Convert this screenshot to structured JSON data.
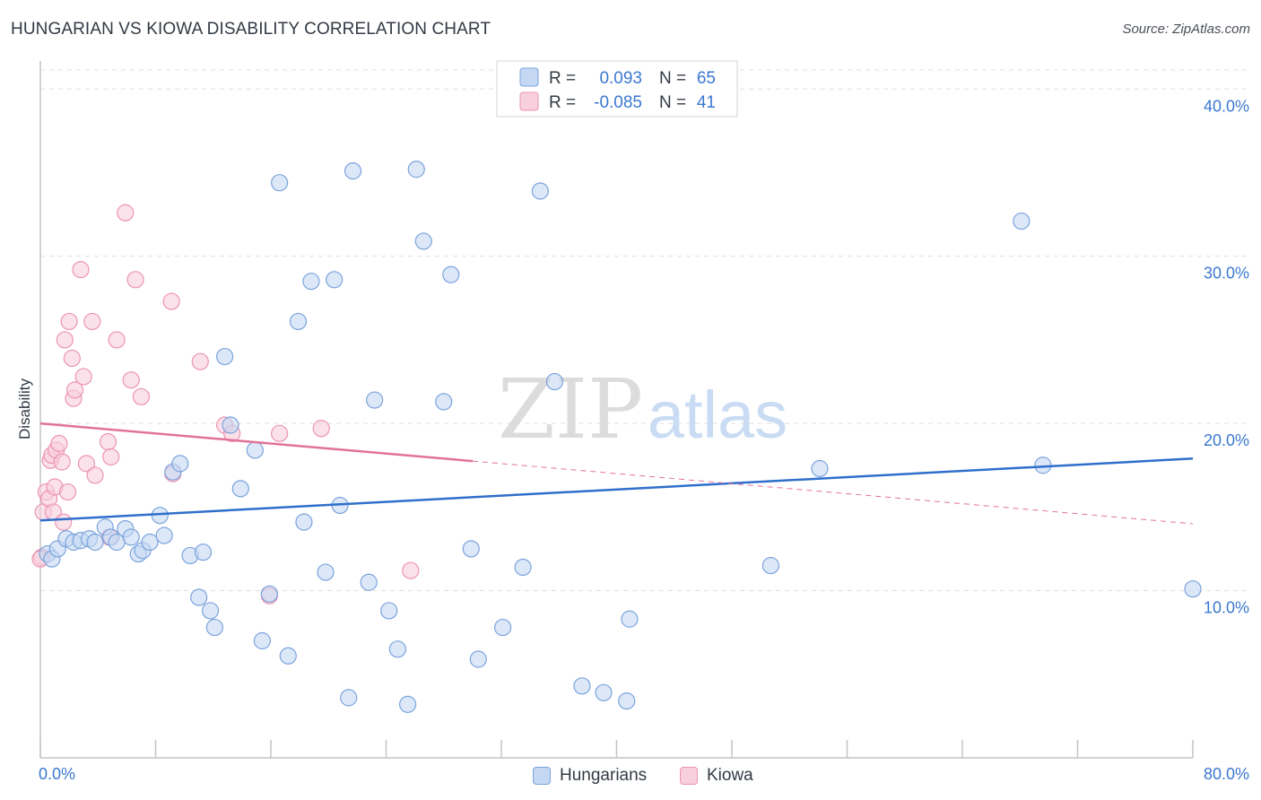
{
  "header": {
    "title": "HUNGARIAN VS KIOWA DISABILITY CORRELATION CHART",
    "source": "Source: ZipAtlas.com"
  },
  "watermark": {
    "zip": "ZIP",
    "atlas": "atlas"
  },
  "colors": {
    "hungarians_fill": "#c5d8f3",
    "hungarians_stroke": "#7ba3dc",
    "hungarians_line": "#2f6fcb",
    "kiowa_fill": "#f8cfdc",
    "kiowa_stroke": "#ec94b1",
    "kiowa_line": "#e2729a",
    "value_text": "#3b78d0",
    "grid": "#dddddd"
  },
  "legend_top": {
    "rows": [
      {
        "r_label": "R =",
        "r_value": "0.093",
        "n_label": "N =",
        "n_value": "65"
      },
      {
        "r_label": "R =",
        "r_value": "-0.085",
        "n_label": "N =",
        "n_value": "41"
      }
    ]
  },
  "legend_bottom": [
    "Hungarians",
    "Kiowa"
  ],
  "chart_data": {
    "type": "scatter",
    "xlabel": "",
    "ylabel": "Disability",
    "xlim": [
      0,
      80
    ],
    "ylim": [
      0,
      42
    ],
    "x_tick_labels": [
      {
        "value": 0,
        "label": "0.0%"
      },
      {
        "value": 80,
        "label": "80.0%"
      }
    ],
    "y_tick_labels": [
      {
        "value": 10,
        "label": "10.0%"
      },
      {
        "value": 20,
        "label": "20.0%"
      },
      {
        "value": 30,
        "label": "30.0%"
      },
      {
        "value": 40,
        "label": "40.0%"
      }
    ],
    "x_minor_ticks": [
      0,
      8,
      16,
      24,
      32,
      40,
      48,
      56,
      64,
      72,
      80
    ],
    "grid": true,
    "series": [
      {
        "name": "Hungarians",
        "r": 0.093,
        "n": 65,
        "trend": {
          "x0": 0,
          "y0": 14.2,
          "x1": 80,
          "y1": 17.9,
          "solid_to": 80
        },
        "points": [
          [
            0.5,
            12.2
          ],
          [
            0.8,
            11.9
          ],
          [
            1.2,
            12.5
          ],
          [
            1.8,
            13.1
          ],
          [
            2.3,
            12.9
          ],
          [
            2.8,
            13.0
          ],
          [
            3.4,
            13.1
          ],
          [
            3.8,
            12.9
          ],
          [
            4.5,
            13.8
          ],
          [
            4.9,
            13.2
          ],
          [
            5.3,
            12.9
          ],
          [
            5.9,
            13.7
          ],
          [
            6.3,
            13.2
          ],
          [
            6.8,
            12.2
          ],
          [
            7.1,
            12.4
          ],
          [
            7.6,
            12.9
          ],
          [
            8.3,
            14.5
          ],
          [
            8.6,
            13.3
          ],
          [
            9.2,
            17.1
          ],
          [
            9.7,
            17.6
          ],
          [
            10.4,
            12.1
          ],
          [
            11.0,
            9.6
          ],
          [
            11.3,
            12.3
          ],
          [
            11.8,
            8.8
          ],
          [
            12.1,
            7.8
          ],
          [
            12.8,
            24.0
          ],
          [
            13.2,
            19.9
          ],
          [
            13.9,
            16.1
          ],
          [
            14.9,
            18.4
          ],
          [
            15.4,
            7.0
          ],
          [
            15.9,
            9.8
          ],
          [
            16.6,
            34.4
          ],
          [
            17.2,
            6.1
          ],
          [
            17.9,
            26.1
          ],
          [
            18.3,
            14.1
          ],
          [
            18.8,
            28.5
          ],
          [
            19.8,
            11.1
          ],
          [
            20.4,
            28.6
          ],
          [
            20.8,
            15.1
          ],
          [
            21.4,
            3.6
          ],
          [
            21.7,
            35.1
          ],
          [
            22.8,
            10.5
          ],
          [
            23.2,
            21.4
          ],
          [
            24.2,
            8.8
          ],
          [
            24.8,
            6.5
          ],
          [
            25.5,
            3.2
          ],
          [
            26.1,
            35.2
          ],
          [
            26.6,
            30.9
          ],
          [
            28.0,
            21.3
          ],
          [
            28.5,
            28.9
          ],
          [
            29.9,
            12.5
          ],
          [
            30.4,
            5.9
          ],
          [
            32.1,
            7.8
          ],
          [
            33.5,
            11.4
          ],
          [
            34.7,
            33.9
          ],
          [
            35.7,
            22.5
          ],
          [
            37.6,
            4.3
          ],
          [
            39.1,
            3.9
          ],
          [
            40.7,
            3.4
          ],
          [
            40.9,
            8.3
          ],
          [
            50.7,
            11.5
          ],
          [
            54.1,
            17.3
          ],
          [
            68.1,
            32.1
          ],
          [
            69.6,
            17.5
          ],
          [
            80.0,
            10.1
          ]
        ]
      },
      {
        "name": "Kiowa",
        "r": -0.085,
        "n": 41,
        "trend": {
          "x0": 0,
          "y0": 20.0,
          "x1": 80,
          "y1": 14.0,
          "solid_to": 30
        },
        "points": [
          [
            0.1,
            12.0
          ],
          [
            0.2,
            14.7
          ],
          [
            0.4,
            15.9
          ],
          [
            0.6,
            15.5
          ],
          [
            0.7,
            17.8
          ],
          [
            0.8,
            18.1
          ],
          [
            0.9,
            14.7
          ],
          [
            1.0,
            16.2
          ],
          [
            1.1,
            18.4
          ],
          [
            1.3,
            18.8
          ],
          [
            1.5,
            17.7
          ],
          [
            1.6,
            14.1
          ],
          [
            1.7,
            25.0
          ],
          [
            1.9,
            15.9
          ],
          [
            2.0,
            26.1
          ],
          [
            2.2,
            23.9
          ],
          [
            2.3,
            21.5
          ],
          [
            2.4,
            22.0
          ],
          [
            2.8,
            29.2
          ],
          [
            3.0,
            22.8
          ],
          [
            3.2,
            17.6
          ],
          [
            3.6,
            26.1
          ],
          [
            3.8,
            16.9
          ],
          [
            4.7,
            18.9
          ],
          [
            4.8,
            13.2
          ],
          [
            4.9,
            18.0
          ],
          [
            5.3,
            25.0
          ],
          [
            5.9,
            32.6
          ],
          [
            6.3,
            22.6
          ],
          [
            6.6,
            28.6
          ],
          [
            7.0,
            21.6
          ],
          [
            9.1,
            27.3
          ],
          [
            9.2,
            17.0
          ],
          [
            11.1,
            23.7
          ],
          [
            12.8,
            19.9
          ],
          [
            13.3,
            19.4
          ],
          [
            15.9,
            9.7
          ],
          [
            16.6,
            19.4
          ],
          [
            19.5,
            19.7
          ],
          [
            25.7,
            11.2
          ],
          [
            0.0,
            11.9
          ]
        ]
      }
    ]
  }
}
